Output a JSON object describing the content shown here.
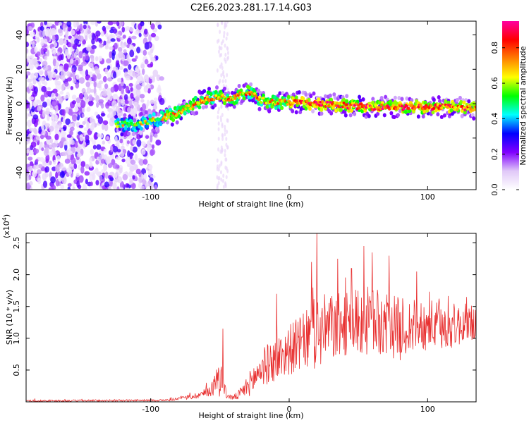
{
  "title": "C2E6.2023.281.17.14.G03",
  "chart_data": [
    {
      "type": "heatmap",
      "xlabel": "Height of straight line (km)",
      "ylabel": "Frequency (Hz)",
      "xlim": [
        -190,
        135
      ],
      "ylim": [
        -50,
        48
      ],
      "xticks": [
        -100,
        0,
        100
      ],
      "xtick_labels": [
        "-100",
        "0",
        "100"
      ],
      "yticks": [
        -40,
        -20,
        0,
        20,
        40
      ],
      "ytick_labels": [
        "-40",
        "-20",
        "0",
        "20",
        "40"
      ],
      "grid": false,
      "ridge": {
        "x": [
          -125,
          -110,
          -100,
          -90,
          -80,
          -70,
          -60,
          -50,
          -45,
          -40,
          -30,
          -20,
          -10,
          0,
          20,
          40,
          60,
          80,
          100,
          120,
          135
        ],
        "y": [
          -12,
          -12,
          -10,
          -8,
          -5,
          -1,
          3,
          4,
          3,
          3,
          7,
          2,
          1,
          1,
          0,
          -1,
          -2,
          -2,
          -2,
          -2,
          -3
        ]
      },
      "colorbar": {
        "label": "Normalized spectral amplitude",
        "range": [
          0.0,
          0.95
        ],
        "ticks": [
          0.0,
          0.2,
          0.4,
          0.6,
          0.8
        ],
        "tick_labels": [
          "0.0",
          "0.2",
          "0.4",
          "0.6",
          "0.8"
        ],
        "colors": [
          "#ffffff",
          "#e0c8f8",
          "#8000ff",
          "#0000ff",
          "#00ffff",
          "#00ff00",
          "#ffff00",
          "#ff8000",
          "#ff0000",
          "#ff00a0"
        ]
      }
    },
    {
      "type": "line",
      "xlabel": "Height of straight line (km)",
      "ylabel": "SNR (10 * v/v)",
      "yscale_label": "(x10",
      "yscale_exp": "4",
      "yscale_close": ")",
      "xlim": [
        -190,
        135
      ],
      "ylim": [
        0,
        2.65
      ],
      "xticks": [
        -100,
        0,
        100
      ],
      "xtick_labels": [
        "-100",
        "0",
        "100"
      ],
      "yticks": [
        0.5,
        1.0,
        1.5,
        2.0,
        2.5
      ],
      "ytick_labels": [
        "0.5",
        "1.0",
        "1.5",
        "2.0",
        "2.5"
      ],
      "color": "#e83030",
      "grid": false,
      "envelope": {
        "x": [
          -190,
          -90,
          -80,
          -70,
          -60,
          -55,
          -52,
          -50,
          -48,
          -45,
          -40,
          -35,
          -30,
          -25,
          -20,
          -10,
          0,
          10,
          20,
          30,
          40,
          50,
          60,
          70,
          80,
          90,
          100,
          110,
          120,
          135
        ],
        "base": [
          0.01,
          0.02,
          0.04,
          0.07,
          0.12,
          0.18,
          0.3,
          0.35,
          0.25,
          0.08,
          0.05,
          0.1,
          0.2,
          0.3,
          0.45,
          0.55,
          0.7,
          0.8,
          0.9,
          1.0,
          1.05,
          1.1,
          1.1,
          1.05,
          1.0,
          1.05,
          1.1,
          1.05,
          1.1,
          1.15
        ],
        "amp": [
          0.03,
          0.03,
          0.05,
          0.08,
          0.15,
          0.25,
          0.45,
          0.8,
          0.3,
          0.1,
          0.08,
          0.2,
          0.35,
          0.5,
          0.6,
          0.7,
          0.8,
          0.9,
          1.2,
          1.1,
          1.0,
          1.1,
          1.1,
          1.0,
          1.0,
          0.9,
          0.8,
          0.8,
          0.7,
          0.6
        ]
      },
      "peaks": [
        {
          "x": 20,
          "y": 2.65
        },
        {
          "x": 54,
          "y": 2.45
        },
        {
          "x": 16,
          "y": 2.2
        },
        {
          "x": 45,
          "y": 2.1
        },
        {
          "x": 60,
          "y": 2.35
        },
        {
          "x": 72,
          "y": 2.3
        },
        {
          "x": -48,
          "y": 1.15
        },
        {
          "x": -9,
          "y": 1.7
        },
        {
          "x": 92,
          "y": 2.05
        },
        {
          "x": 128,
          "y": 1.65
        }
      ]
    }
  ]
}
